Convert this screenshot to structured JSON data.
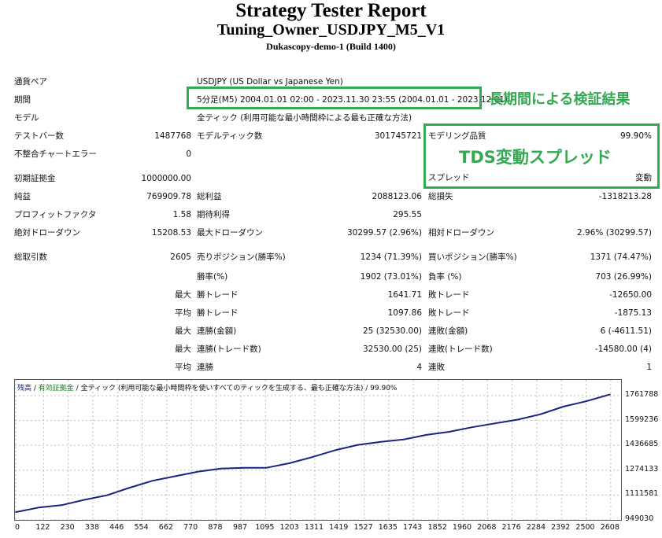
{
  "header": {
    "title": "Strategy Tester Report",
    "subtitle": "Tuning_Owner_USDJPY_M5_V1",
    "server": "Dukascopy-demo-1 (Build 1400)"
  },
  "settings": {
    "symbol_label": "通貨ペア",
    "symbol_value": "USDJPY (US Dollar vs Japanese Yen)",
    "period_label": "期間",
    "period_value": "5分足(M5) 2004.01.01 02:00 - 2023.11.30 23:55 (2004.01.01 - 2023.12.01)",
    "model_label": "モデル",
    "model_value": "全ティック (利用可能な最小時間枠による最も正確な方法)"
  },
  "annotations": {
    "period_note": "長期間による検証結果",
    "spread_note": "TDS変動スプレッド"
  },
  "stats": {
    "bars_label": "テストバー数",
    "bars_value": "1487768",
    "ticks_label": "モデルティック数",
    "ticks_value": "301745721",
    "quality_label": "モデリング品質",
    "quality_value": "99.90%",
    "mismatch_label": "不整合チャートエラー",
    "mismatch_value": "0",
    "spread_label": "スプレッド",
    "spread_value": "変動",
    "deposit_label": "初期証拠金",
    "deposit_value": "1000000.00",
    "net_label": "純益",
    "net_value": "769909.78",
    "gross_profit_label": "総利益",
    "gross_profit_value": "2088123.06",
    "gross_loss_label": "総損失",
    "gross_loss_value": "-1318213.28",
    "pf_label": "プロフィットファクタ",
    "pf_value": "1.58",
    "expected_label": "期待利得",
    "expected_value": "295.55",
    "abs_dd_label": "絶対ドローダウン",
    "abs_dd_value": "15208.53",
    "max_dd_label": "最大ドローダウン",
    "max_dd_value": "30299.57 (2.96%)",
    "rel_dd_label": "相対ドローダウン",
    "rel_dd_value": "2.96% (30299.57)",
    "total_trades_label": "総取引数",
    "total_trades_value": "2605",
    "short_label": "売りポジション(勝率%)",
    "short_value": "1234 (71.39%)",
    "long_label": "買いポジション(勝率%)",
    "long_value": "1371 (74.47%)",
    "win_rate_label": "勝率(%)",
    "win_rate_value": "1902 (73.01%)",
    "loss_rate_label": "負率 (%)",
    "loss_rate_value": "703 (26.99%)",
    "max_label": "最大",
    "avg_label": "平均",
    "largest_win_label": "勝トレード",
    "largest_win_value": "1641.71",
    "largest_loss_label": "敗トレード",
    "largest_loss_value": "-12650.00",
    "avg_win_label": "勝トレード",
    "avg_win_value": "1097.86",
    "avg_loss_label": "敗トレード",
    "avg_loss_value": "-1875.13",
    "max_consec_win_amt_label": "連勝(金額)",
    "max_consec_win_amt_value": "25 (32530.00)",
    "max_consec_loss_amt_label": "連敗(金額)",
    "max_consec_loss_amt_value": "6 (-4611.51)",
    "max_consec_win_trd_label": "連勝(トレード数)",
    "max_consec_win_trd_value": "32530.00 (25)",
    "max_consec_loss_trd_label": "連敗(トレード数)",
    "max_consec_loss_trd_value": "-14580.00 (4)",
    "avg_consec_win_label": "連勝",
    "avg_consec_win_value": "4",
    "avg_consec_loss_label": "連敗",
    "avg_consec_loss_value": "1"
  },
  "chart_data": {
    "type": "line",
    "legend": {
      "balance": "残高",
      "sep1": " / ",
      "equity": "有効証拠金",
      "sep2": " / ",
      "model": "全ティック (利用可能な最小時間枠を使いすべてのティックを生成する、最も正確な方法)",
      "sep3": " / ",
      "quality": "99.90%"
    },
    "y_ticks": [
      "1761788",
      "1599236",
      "1436685",
      "1274133",
      "1111581",
      "949030"
    ],
    "x_ticks": [
      "0",
      "122",
      "230",
      "338",
      "446",
      "554",
      "662",
      "770",
      "878",
      "987",
      "1095",
      "1203",
      "1311",
      "1419",
      "1527",
      "1635",
      "1743",
      "1852",
      "1960",
      "2068",
      "2176",
      "2284",
      "2392",
      "2500",
      "2608"
    ],
    "ylim": [
      949030,
      1761788
    ],
    "xlim": [
      0,
      2650
    ],
    "grid": true,
    "series": [
      {
        "name": "残高",
        "color": "#1a237e",
        "x": [
          0,
          100,
          200,
          300,
          400,
          500,
          600,
          700,
          800,
          900,
          1000,
          1100,
          1200,
          1300,
          1400,
          1500,
          1600,
          1700,
          1800,
          1900,
          2000,
          2100,
          2200,
          2300,
          2400,
          2500,
          2605
        ],
        "y": [
          1000000,
          1030000,
          1045000,
          1080000,
          1110000,
          1160000,
          1205000,
          1235000,
          1265000,
          1285000,
          1290000,
          1290000,
          1320000,
          1360000,
          1405000,
          1440000,
          1460000,
          1475000,
          1505000,
          1525000,
          1555000,
          1580000,
          1605000,
          1640000,
          1690000,
          1725000,
          1769910
        ]
      }
    ]
  }
}
